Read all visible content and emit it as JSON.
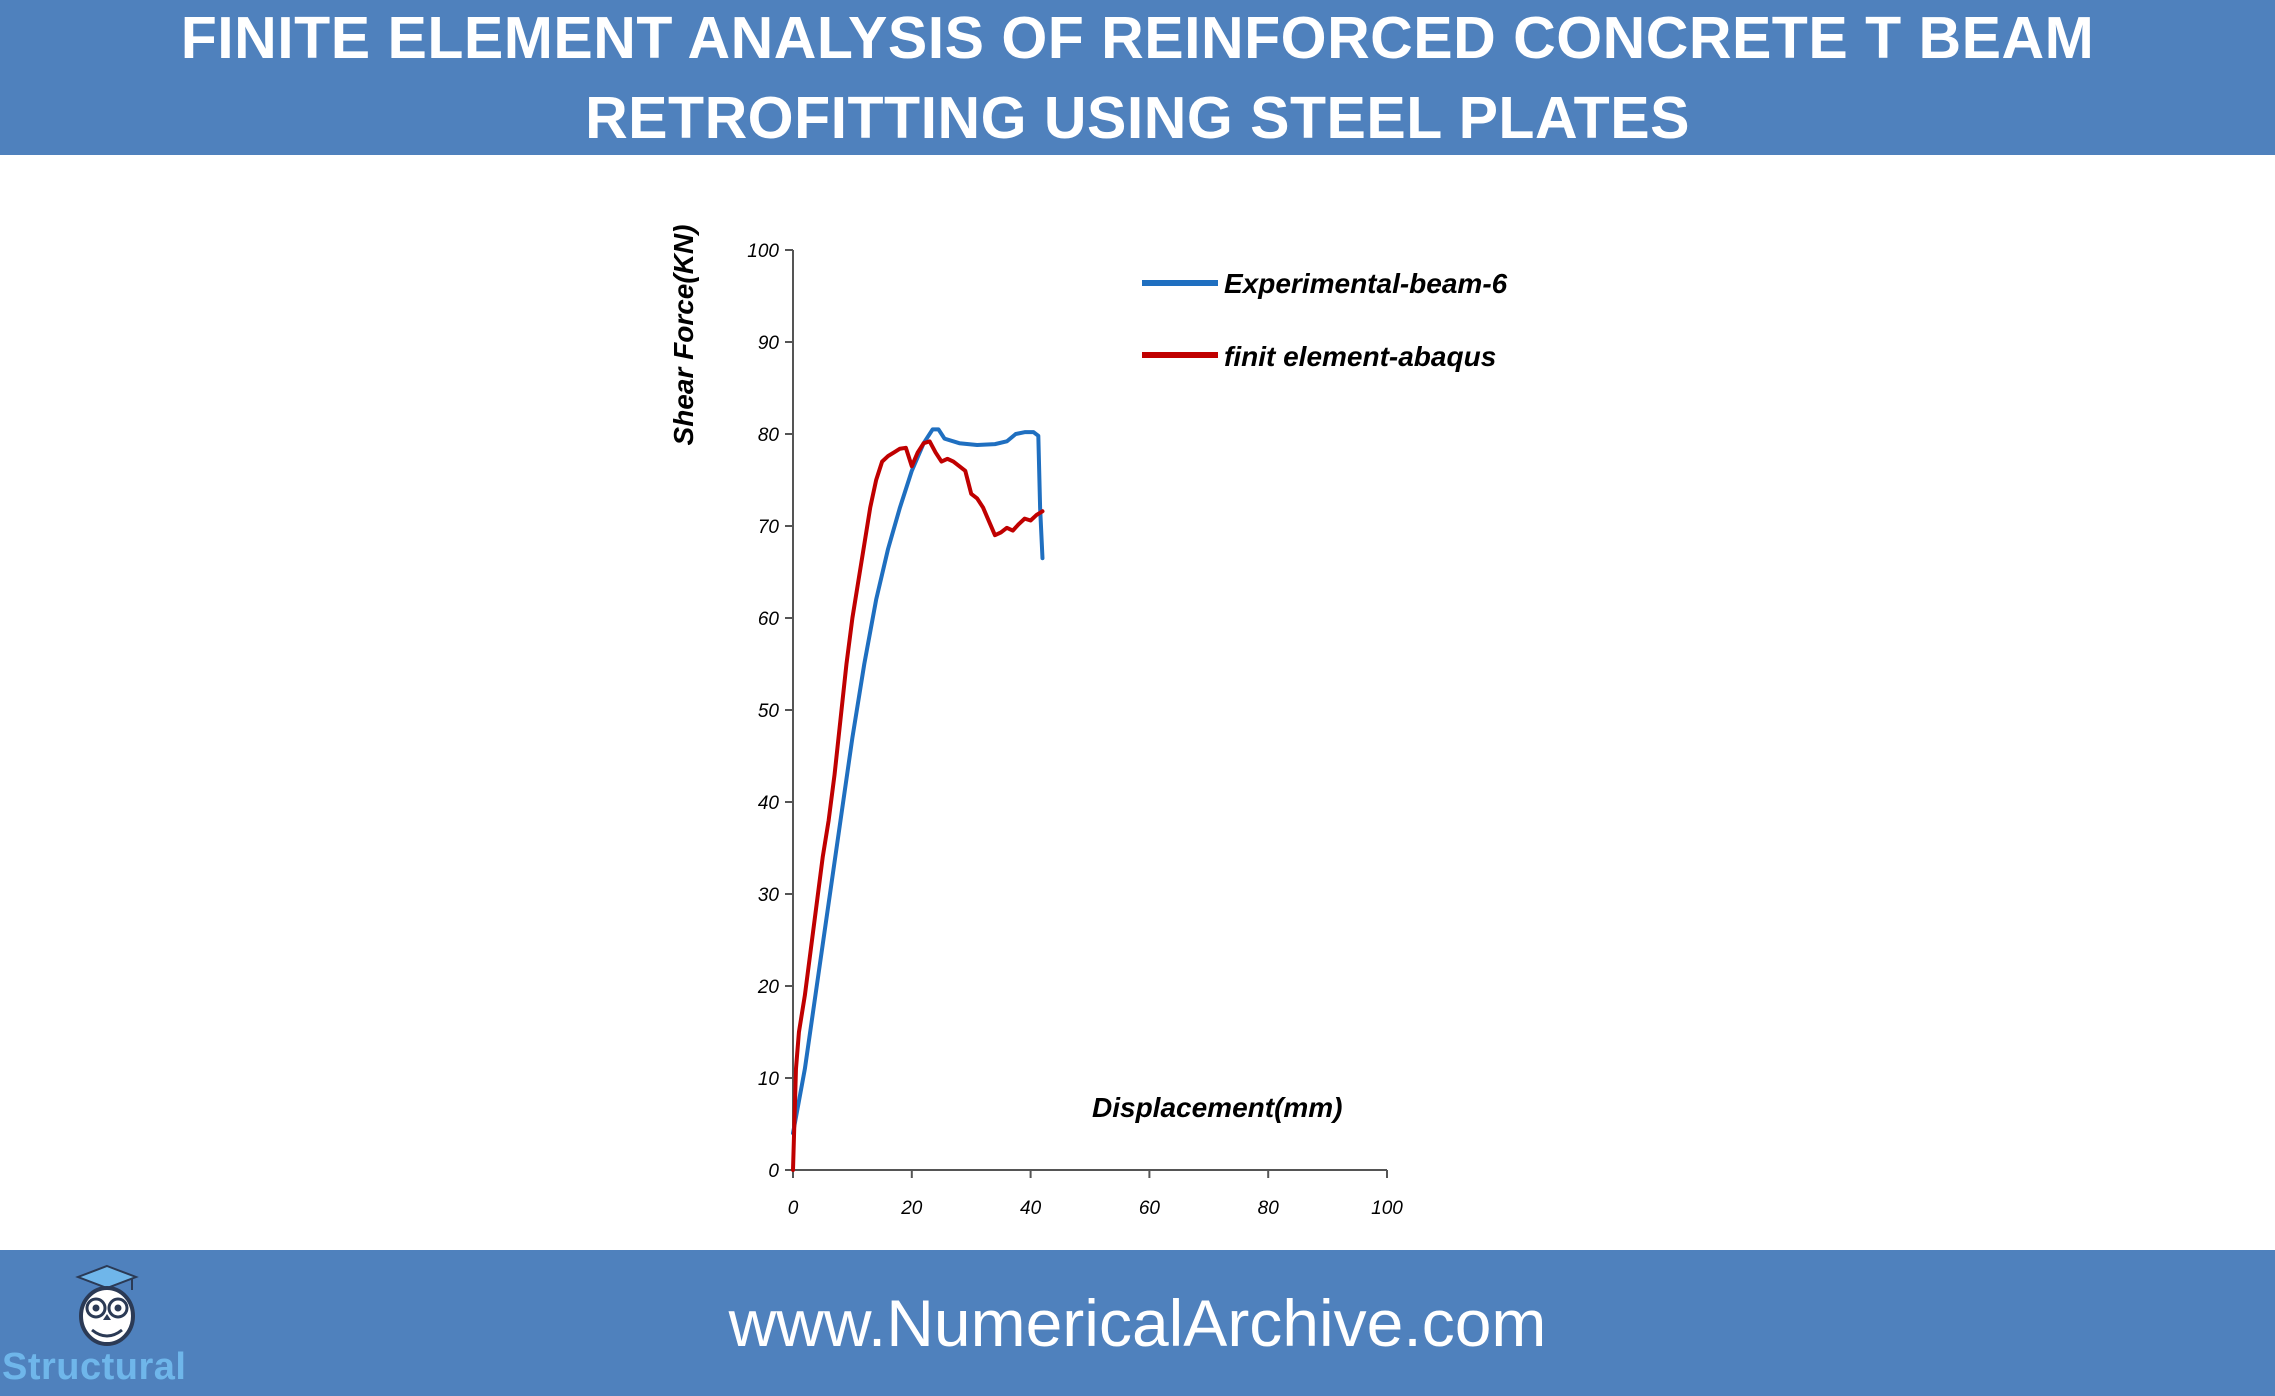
{
  "header": {
    "title_line1": "FINITE ELEMENT ANALYSIS OF REINFORCED CONCRETE T BEAM",
    "title_line2": "RETROFITTING USING STEEL PLATES"
  },
  "footer": {
    "url": "www.NumericalArchive.com",
    "logo_text": "Structural",
    "logo_icon": "owl-graduate-icon"
  },
  "colors": {
    "banner": "#4f81bd",
    "logo_text": "#6fb6ea",
    "series_experimental": "#1f6fc0",
    "series_fem": "#c00000"
  },
  "chart_data": {
    "type": "line",
    "xlabel": "Displacement(mm)",
    "ylabel": "Shear Force(KN)",
    "xlim": [
      0,
      100
    ],
    "ylim": [
      0,
      100
    ],
    "x_ticks": [
      "0",
      "20",
      "40",
      "60",
      "80",
      "100"
    ],
    "y_ticks": [
      "0",
      "10",
      "20",
      "30",
      "40",
      "50",
      "60",
      "70",
      "80",
      "90",
      "100"
    ],
    "grid": false,
    "legend_position": "top-right",
    "series": [
      {
        "name": "Experimental-beam-6",
        "color": "#1f6fc0",
        "points": [
          [
            0,
            4
          ],
          [
            2,
            11
          ],
          [
            4,
            20
          ],
          [
            6,
            29
          ],
          [
            8,
            38
          ],
          [
            10,
            47
          ],
          [
            12,
            55
          ],
          [
            14,
            62
          ],
          [
            16,
            67.5
          ],
          [
            18,
            72
          ],
          [
            20,
            76
          ],
          [
            22,
            79
          ],
          [
            23.5,
            80.5
          ],
          [
            24.5,
            80.5
          ],
          [
            25.5,
            79.5
          ],
          [
            28,
            79
          ],
          [
            31,
            78.8
          ],
          [
            34,
            78.9
          ],
          [
            36,
            79.2
          ],
          [
            37.5,
            80
          ],
          [
            39,
            80.2
          ],
          [
            40.5,
            80.2
          ],
          [
            41.3,
            79.8
          ],
          [
            41.6,
            72
          ],
          [
            42,
            66.5
          ]
        ]
      },
      {
        "name": "finit element-abaqus",
        "color": "#c00000",
        "points": [
          [
            0,
            0
          ],
          [
            0.5,
            11
          ],
          [
            1,
            15
          ],
          [
            2,
            19
          ],
          [
            3,
            24
          ],
          [
            4,
            29
          ],
          [
            5,
            34
          ],
          [
            6,
            38
          ],
          [
            7,
            43
          ],
          [
            8,
            49
          ],
          [
            9,
            55
          ],
          [
            10,
            60
          ],
          [
            11,
            64
          ],
          [
            12,
            68
          ],
          [
            13,
            72
          ],
          [
            14,
            75
          ],
          [
            15,
            77
          ],
          [
            16,
            77.6
          ],
          [
            17,
            78
          ],
          [
            18,
            78.4
          ],
          [
            19,
            78.5
          ],
          [
            20,
            76.5
          ],
          [
            21,
            78
          ],
          [
            22,
            79
          ],
          [
            23,
            79.2
          ],
          [
            24,
            78
          ],
          [
            25,
            77
          ],
          [
            26,
            77.3
          ],
          [
            27,
            77
          ],
          [
            28,
            76.5
          ],
          [
            29,
            76
          ],
          [
            30,
            73.5
          ],
          [
            31,
            73
          ],
          [
            32,
            72
          ],
          [
            33,
            70.5
          ],
          [
            34,
            69
          ],
          [
            35,
            69.3
          ],
          [
            36,
            69.8
          ],
          [
            37,
            69.5
          ],
          [
            38,
            70.2
          ],
          [
            39,
            70.8
          ],
          [
            40,
            70.6
          ],
          [
            41,
            71.2
          ],
          [
            42,
            71.6
          ]
        ]
      }
    ]
  }
}
